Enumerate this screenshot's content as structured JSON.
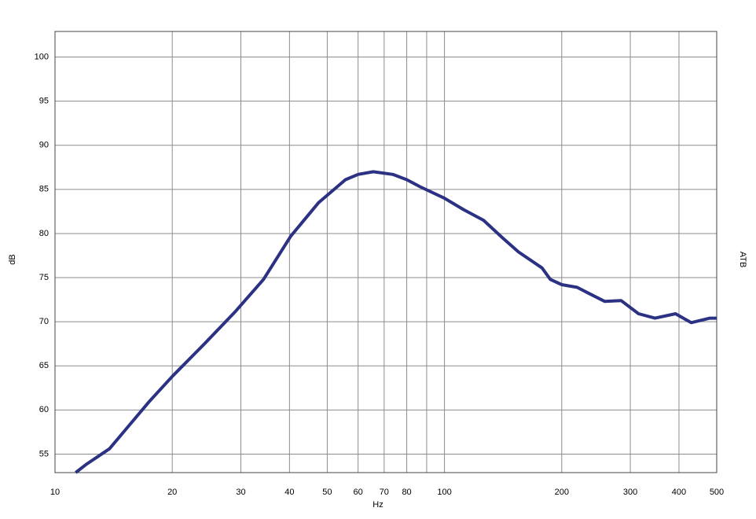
{
  "chart_data": {
    "type": "line",
    "x_label": "Hz",
    "y_label": "dB",
    "y2_label": "ATB",
    "xscale": "log",
    "grid": true,
    "xlim": [
      10,
      500
    ],
    "xticks": [
      10,
      20,
      30,
      40,
      50,
      60,
      70,
      80,
      {
        "value": 90,
        "label": null
      },
      100,
      200,
      300,
      400,
      500
    ],
    "ylim": [
      52.9,
      102.9
    ],
    "yticks": [
      55,
      60,
      65,
      70,
      75,
      80,
      85,
      90,
      95,
      100
    ],
    "x": [
      11.3,
      12.0,
      13.8,
      15.2,
      17.5,
      20,
      24.2,
      29.1,
      34.3,
      40.3,
      47.5,
      55.7,
      60,
      65.6,
      73.7,
      80,
      86.6,
      100,
      112,
      126,
      141,
      155,
      178,
      187,
      200,
      219,
      235,
      258,
      284,
      315,
      347,
      392,
      430,
      480,
      500
    ],
    "series": [
      {
        "color": "#2b3183",
        "values": [
          52.9,
          53.8,
          55.6,
          57.8,
          61.0,
          63.8,
          67.5,
          71.2,
          74.8,
          79.7,
          83.5,
          86.1,
          86.7,
          87.0,
          86.7,
          86.1,
          85.3,
          84.0,
          82.7,
          81.5,
          79.5,
          77.9,
          76.1,
          74.8,
          74.2,
          73.9,
          73.2,
          72.3,
          72.4,
          70.9,
          70.4,
          70.9,
          69.9,
          70.4,
          70.4
        ]
      }
    ]
  }
}
